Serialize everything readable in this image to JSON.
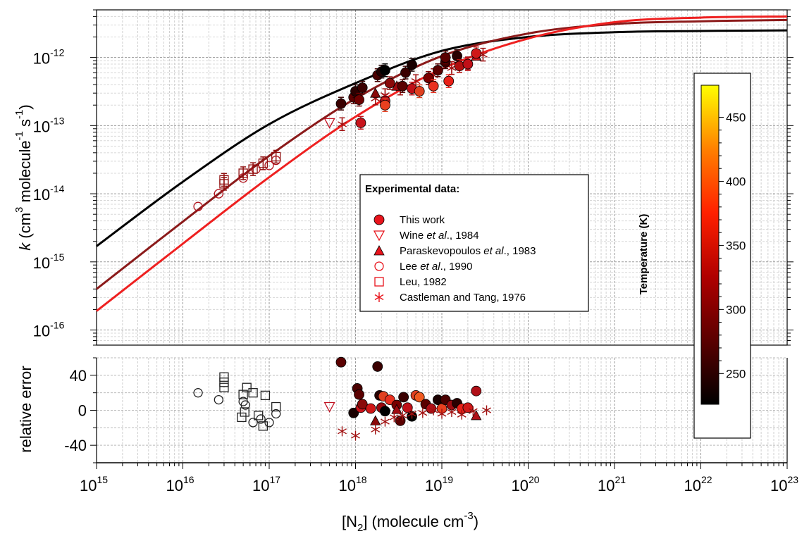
{
  "chart_data": [
    {
      "type": "scatter",
      "panel": "top",
      "title": "",
      "xlabel": {
        "prefix": "[N",
        "sub": "2",
        "mid": "] (molecule cm",
        "sup": "-3",
        "suffix": ")"
      },
      "ylabel": {
        "italic": "k",
        "p1": " (cm",
        "s1": "3",
        "p2": " molecule",
        "s2": "-1",
        "p3": " s",
        "s3": "-1",
        "p4": ")"
      },
      "x_scale": "log",
      "y_scale": "log",
      "xlim": [
        1000000000000000.0,
        1e+23
      ],
      "ylim": [
        6e-17,
        5e-12
      ],
      "grid": true,
      "x_ticks": [
        {
          "base": "10",
          "exp": "15",
          "value": 1000000000000000.0
        },
        {
          "base": "10",
          "exp": "16",
          "value": 1e+16
        },
        {
          "base": "10",
          "exp": "17",
          "value": 1e+17
        },
        {
          "base": "10",
          "exp": "18",
          "value": 1e+18
        },
        {
          "base": "10",
          "exp": "19",
          "value": 1e+19
        },
        {
          "base": "10",
          "exp": "20",
          "value": 1e+20
        },
        {
          "base": "10",
          "exp": "21",
          "value": 1e+21
        },
        {
          "base": "10",
          "exp": "22",
          "value": 1e+22
        },
        {
          "base": "10",
          "exp": "23",
          "value": 1e+23
        }
      ],
      "y_ticks": [
        {
          "base": "10",
          "exp": "-16",
          "value": 1e-16
        },
        {
          "base": "10",
          "exp": "-15",
          "value": 1e-15
        },
        {
          "base": "10",
          "exp": "-14",
          "value": 1e-14
        },
        {
          "base": "10",
          "exp": "-13",
          "value": 1e-13
        },
        {
          "base": "10",
          "exp": "-12",
          "value": 1e-12
        }
      ],
      "fit_curves": [
        {
          "color": "#000000",
          "x": [
            1000000000000000.0,
            1e+16,
            1e+17,
            1e+18,
            1e+19,
            1e+20,
            1e+21,
            1e+22,
            1e+23
          ],
          "y": [
            1.7e-15,
            1.5e-14,
            1.05e-13,
            4.2e-13,
            1.25e-12,
            2e-12,
            2.35e-12,
            2.45e-12,
            2.5e-12
          ]
        },
        {
          "color": "#8b1a1a",
          "x": [
            1000000000000000.0,
            1e+16,
            1e+17,
            1e+18,
            1e+19,
            1e+20,
            1e+21,
            1e+22,
            1e+23
          ],
          "y": [
            4e-16,
            3.9e-15,
            3.6e-14,
            2.5e-13,
            1.05e-12,
            2.25e-12,
            3.1e-12,
            3.4e-12,
            3.55e-12
          ]
        },
        {
          "color": "#ee2020",
          "x": [
            1000000000000000.0,
            1e+16,
            1e+17,
            1e+18,
            1e+19,
            1e+20,
            1e+21,
            1e+22,
            1e+23
          ],
          "y": [
            1.9e-16,
            1.85e-15,
            1.75e-14,
            1.35e-13,
            6.8e-13,
            1.9e-12,
            3.3e-12,
            3.85e-12,
            4e-12
          ]
        }
      ],
      "series": [
        {
          "name": "This work",
          "marker": "circle-filled",
          "color": "#e8141c",
          "points": [
            [
              6.8e+17,
              2.1e-13,
              "#3a0000"
            ],
            [
              9.5e+17,
              2.6e-13,
              "#5c0000"
            ],
            [
              1e+18,
              3.2e-13,
              "#2a0000"
            ],
            [
              1.1e+18,
              2.4e-13,
              "#6e0000"
            ],
            [
              1.2e+18,
              3.6e-13,
              "#3c0000"
            ],
            [
              1.15e+18,
              1.1e-13,
              "#c8141c"
            ],
            [
              1.8e+18,
              5.5e-13,
              "#4a0000"
            ],
            [
              2e+18,
              6.2e-13,
              "#200000"
            ],
            [
              2.2e+18,
              6.5e-13,
              "#000000"
            ],
            [
              2.5e+18,
              4.2e-13,
              "#8a0a0a"
            ],
            [
              2.2e+18,
              2.3e-13,
              "#b0101a"
            ],
            [
              3.5e+18,
              3.8e-13,
              "#5a0000"
            ],
            [
              3.8e+18,
              6e-13,
              "#3a0000"
            ],
            [
              4.5e+18,
              7.8e-13,
              "#1a0000"
            ],
            [
              4.5e+18,
              3.5e-13,
              "#c01018"
            ],
            [
              5.5e+18,
              3.2e-13,
              "#e04020"
            ],
            [
              7e+18,
              5e-13,
              "#7a0000"
            ],
            [
              8e+18,
              3.8e-13,
              "#e83020"
            ],
            [
              9e+18,
              6.5e-13,
              "#5a0000"
            ],
            [
              1.1e+19,
              8.5e-13,
              "#3a0000"
            ],
            [
              1.1e+19,
              1e-12,
              "#5a0000"
            ],
            [
              1.2e+19,
              4.5e-13,
              "#e82018"
            ],
            [
              1.5e+19,
              1.05e-12,
              "#2a0000"
            ],
            [
              1.6e+19,
              7.5e-13,
              "#b01010"
            ],
            [
              2e+19,
              8e-13,
              "#c01018"
            ],
            [
              2.5e+19,
              1.15e-12,
              "#d01818"
            ],
            [
              2.2e+18,
              2e-13,
              "#e84020"
            ]
          ]
        },
        {
          "name": "Wine et al., 1984",
          "marker": "triangle-down",
          "color": "#e8141c",
          "points": [
            [
              5e+17,
              1.1e-13,
              "#c01020"
            ]
          ]
        },
        {
          "name": "Paraskevopoulos et al., 1983",
          "marker": "triangle-filled",
          "color": "#e8141c",
          "points": [
            [
              1.7e+18,
              3e-13,
              "#8a0808"
            ],
            [
              3e+18,
              3.8e-13,
              "#a00a10"
            ],
            [
              2.5e+19,
              1.05e-12,
              "#b01018"
            ]
          ]
        },
        {
          "name": "Lee et al., 1990",
          "marker": "circle-open",
          "color": "#e8141c",
          "points": [
            [
              1.5e+16,
              6.5e-15,
              "#b0101a"
            ],
            [
              2.6e+16,
              1e-14,
              "#b0101a"
            ],
            [
              5e+16,
              1.7e-14,
              "#b0101a"
            ],
            [
              7e+16,
              2.3e-14,
              "#b0101a"
            ],
            [
              1e+17,
              2.6e-14,
              "#b0101a"
            ],
            [
              1.2e+17,
              3.1e-14,
              "#b0101a"
            ]
          ]
        },
        {
          "name": "Leu, 1982",
          "marker": "square-open",
          "color": "#e8141c",
          "points": [
            [
              3e+16,
              1.4e-14,
              "#901010"
            ],
            [
              3e+16,
              1.6e-14,
              "#901010"
            ],
            [
              5e+16,
              2e-14,
              "#901010"
            ],
            [
              6.5e+16,
              2.3e-14,
              "#901010"
            ],
            [
              8.5e+16,
              2.8e-14,
              "#901010"
            ],
            [
              1.2e+17,
              3.5e-14,
              "#901010"
            ]
          ]
        },
        {
          "name": "Castleman and Tang, 1976",
          "marker": "asterisk",
          "color": "#e8141c",
          "points": [
            [
              7e+17,
              1.05e-13,
              "#a01010"
            ],
            [
              1.7e+18,
              2.5e-13,
              "#a01010"
            ],
            [
              2.2e+18,
              2.8e-13,
              "#a01010"
            ],
            [
              3.3e+18,
              3.5e-13,
              "#a01010"
            ],
            [
              5e+18,
              4.5e-13,
              "#a01010"
            ],
            [
              8e+18,
              5.5e-13,
              "#a01010"
            ],
            [
              1.3e+19,
              7e-13,
              "#a01010"
            ],
            [
              2e+19,
              8.2e-13,
              "#a01010"
            ],
            [
              3e+19,
              1.1e-12,
              "#a01010"
            ]
          ]
        }
      ],
      "legend": {
        "placement": "center",
        "title": "Experimental data:",
        "entries": [
          {
            "name": "This work",
            "parts": [
              {
                "t": "This work",
                "i": false
              }
            ]
          },
          {
            "name": "Wine et al., 1984",
            "parts": [
              {
                "t": "Wine ",
                "i": false
              },
              {
                "t": "et al",
                "i": true
              },
              {
                "t": "., 1984",
                "i": false
              }
            ]
          },
          {
            "name": "Paraskevopoulos et al., 1983",
            "parts": [
              {
                "t": "Paraskevopoulos ",
                "i": false
              },
              {
                "t": "et al",
                "i": true
              },
              {
                "t": "., 1983",
                "i": false
              }
            ]
          },
          {
            "name": "Lee et al., 1990",
            "parts": [
              {
                "t": "Lee ",
                "i": false
              },
              {
                "t": "et al",
                "i": true
              },
              {
                "t": "., 1990",
                "i": false
              }
            ]
          },
          {
            "name": "Leu, 1982",
            "parts": [
              {
                "t": "Leu, 1982",
                "i": false
              }
            ]
          },
          {
            "name": "Castleman and Tang, 1976",
            "parts": [
              {
                "t": "Castleman and Tang, 1976",
                "i": false
              }
            ]
          }
        ]
      }
    },
    {
      "type": "scatter",
      "panel": "bottom",
      "ylabel": "relative error",
      "x_scale": "log",
      "xlim": [
        1000000000000000.0,
        1e+23
      ],
      "ylim": [
        -60,
        60
      ],
      "grid": true,
      "y_ticks": [
        "40",
        "0",
        "-40"
      ],
      "series": [
        {
          "name": "This work",
          "marker": "circle-filled",
          "points": [
            [
              6.8e+17,
              55,
              "#5a0000"
            ],
            [
              9.5e+17,
              -3,
              "#1a0000"
            ],
            [
              1.05e+18,
              25,
              "#4a0000"
            ],
            [
              1.1e+18,
              18,
              "#5a0000"
            ],
            [
              1.15e+18,
              3,
              "#c8141c"
            ],
            [
              1.2e+18,
              7,
              "#8a0a0a"
            ],
            [
              1.5e+18,
              2,
              "#d01818"
            ],
            [
              1.8e+18,
              50,
              "#3a0000"
            ],
            [
              1.9e+18,
              17,
              "#2a0000"
            ],
            [
              2e+18,
              3,
              "#9a0a10"
            ],
            [
              2.1e+18,
              16,
              "#e04020"
            ],
            [
              2.2e+18,
              -1,
              "#000000"
            ],
            [
              2.5e+18,
              12,
              "#e83020"
            ],
            [
              3e+18,
              6,
              "#7a0000"
            ],
            [
              3.3e+18,
              -12,
              "#5a0000"
            ],
            [
              3.6e+18,
              15,
              "#3a0000"
            ],
            [
              4e+18,
              3,
              "#c01018"
            ],
            [
              4.5e+18,
              -7,
              "#000000"
            ],
            [
              5e+18,
              17,
              "#e04020"
            ],
            [
              5.5e+18,
              15,
              "#f05a20"
            ],
            [
              6.5e+18,
              7,
              "#5a0000"
            ],
            [
              7.5e+18,
              2,
              "#b01018"
            ],
            [
              9e+18,
              12,
              "#1a0000"
            ],
            [
              1e+19,
              2,
              "#e84020"
            ],
            [
              1.1e+19,
              12,
              "#4a0000"
            ],
            [
              1.3e+19,
              6,
              "#9a0a10"
            ],
            [
              1.5e+19,
              8,
              "#2a0000"
            ],
            [
              1.7e+19,
              2,
              "#e82018"
            ],
            [
              2e+19,
              3,
              "#d01818"
            ],
            [
              2.5e+19,
              22,
              "#b01018"
            ]
          ]
        },
        {
          "name": "Wine et al., 1984",
          "marker": "triangle-down",
          "points": [
            [
              5e+17,
              4,
              "#c01020"
            ]
          ]
        },
        {
          "name": "Paraskevopoulos et al., 1983",
          "marker": "triangle-filled",
          "points": [
            [
              1.7e+18,
              -12,
              "#8a0808"
            ],
            [
              3e+18,
              1,
              "#a00a10"
            ],
            [
              2.5e+19,
              -6,
              "#b01018"
            ]
          ]
        },
        {
          "name": "Lee et al., 1990",
          "marker": "circle-open",
          "points": [
            [
              1.5e+16,
              20,
              "#222"
            ],
            [
              2.6e+16,
              12,
              "#222"
            ],
            [
              5e+16,
              10,
              "#222"
            ],
            [
              5.3e+16,
              6,
              "#222"
            ],
            [
              6.5e+16,
              -14,
              "#222"
            ],
            [
              8e+16,
              -10,
              "#222"
            ],
            [
              1e+17,
              -14,
              "#222"
            ],
            [
              1.2e+17,
              -4,
              "#222"
            ]
          ]
        },
        {
          "name": "Leu, 1982",
          "marker": "square-open",
          "points": [
            [
              3e+16,
              38,
              "#222"
            ],
            [
              3e+16,
              32,
              "#222"
            ],
            [
              3e+16,
              26,
              "#222"
            ],
            [
              5e+16,
              18,
              "#222"
            ],
            [
              5.5e+16,
              26,
              "#222"
            ],
            [
              6.5e+16,
              20,
              "#222"
            ],
            [
              4.8e+16,
              -8,
              "#222"
            ],
            [
              5.2e+16,
              -2,
              "#222"
            ],
            [
              7.5e+16,
              -6,
              "#222"
            ],
            [
              8.5e+16,
              -18,
              "#222"
            ],
            [
              9e+16,
              17,
              "#222"
            ],
            [
              1.2e+17,
              4,
              "#222"
            ]
          ]
        },
        {
          "name": "Castleman and Tang, 1976",
          "marker": "asterisk",
          "points": [
            [
              7e+17,
              -24,
              "#a01010"
            ],
            [
              1e+18,
              -29,
              "#a01010"
            ],
            [
              1.7e+18,
              -22,
              "#a01010"
            ],
            [
              2.2e+18,
              -13,
              "#a01010"
            ],
            [
              2.8e+18,
              -8,
              "#a01010"
            ],
            [
              3.5e+18,
              -6,
              "#a01010"
            ],
            [
              4.5e+18,
              -4,
              "#a01010"
            ],
            [
              6e+18,
              -3,
              "#a01010"
            ],
            [
              8e+18,
              0,
              "#a01010"
            ],
            [
              1e+19,
              -4,
              "#a01010"
            ],
            [
              1.3e+19,
              -2,
              "#a01010"
            ],
            [
              1.7e+19,
              -5,
              "#a01010"
            ],
            [
              2.3e+19,
              -1,
              "#a01010"
            ],
            [
              3.3e+19,
              0,
              "#a01010"
            ]
          ]
        }
      ]
    }
  ],
  "colorbar": {
    "title": "Temperature (K)",
    "range": [
      226,
      475
    ],
    "ticks": [
      {
        "label": "250",
        "value": 250
      },
      {
        "label": "300",
        "value": 300
      },
      {
        "label": "350",
        "value": 350
      },
      {
        "label": "400",
        "value": 400
      },
      {
        "label": "450",
        "value": 450
      }
    ],
    "colors": [
      "#000000",
      "#5a0000",
      "#b00000",
      "#ff2000",
      "#ff8000",
      "#ffff00"
    ]
  }
}
